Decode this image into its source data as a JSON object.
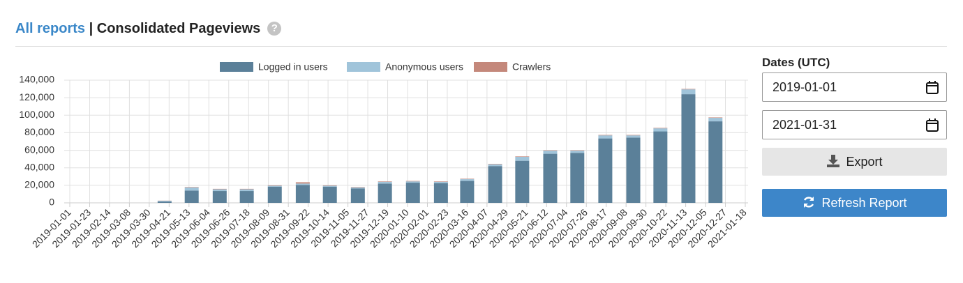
{
  "header": {
    "link": "All reports",
    "separator": "|",
    "title": "Consolidated Pageviews",
    "help": "?"
  },
  "sidebar": {
    "label": "Dates (UTC)",
    "start_date": "2019-01-01",
    "end_date": "2021-01-31",
    "export": "Export",
    "refresh": "Refresh Report"
  },
  "chart_data": {
    "type": "bar",
    "stacked": true,
    "grid": true,
    "legend": "top",
    "x": [
      "2019-04",
      "2019-05",
      "2019-06",
      "2019-07",
      "2019-08",
      "2019-09",
      "2019-10",
      "2019-11",
      "2019-12",
      "2020-01",
      "2020-02",
      "2020-03",
      "2020-04",
      "2020-05",
      "2020-06",
      "2020-07",
      "2020-08",
      "2020-09",
      "2020-10",
      "2020-11",
      "2020-12"
    ],
    "series": [
      {
        "name": "Logged in users",
        "color": "#5b8099",
        "values": [
          1500,
          14000,
          13500,
          13500,
          18500,
          20500,
          18500,
          16500,
          22000,
          23000,
          22500,
          25000,
          42000,
          48000,
          56000,
          57000,
          73500,
          74500,
          81500,
          124000,
          93000
        ]
      },
      {
        "name": "Anonymous users",
        "color": "#a0c4da",
        "values": [
          800,
          3500,
          2000,
          2000,
          1000,
          1500,
          1000,
          1000,
          2000,
          1500,
          1500,
          2000,
          2000,
          4500,
          3500,
          2500,
          3500,
          2500,
          3500,
          5500,
          4000
        ]
      },
      {
        "name": "Crawlers",
        "color": "#c4887b",
        "values": [
          200,
          500,
          500,
          500,
          500,
          1500,
          500,
          500,
          500,
          500,
          500,
          500,
          500,
          500,
          500,
          500,
          500,
          500,
          500,
          500,
          500
        ]
      }
    ],
    "xlim": [
      "2019-01-01",
      "2021-01-18"
    ],
    "xticks": [
      "2019-01-01",
      "2019-01-23",
      "2019-02-14",
      "2019-03-08",
      "2019-03-30",
      "2019-04-21",
      "2019-05-13",
      "2019-06-04",
      "2019-06-26",
      "2019-07-18",
      "2019-08-09",
      "2019-08-31",
      "2019-09-22",
      "2019-10-14",
      "2019-11-05",
      "2019-11-27",
      "2019-12-19",
      "2020-01-10",
      "2020-02-01",
      "2020-02-23",
      "2020-03-16",
      "2020-04-07",
      "2020-04-29",
      "2020-05-21",
      "2020-06-12",
      "2020-07-04",
      "2020-07-26",
      "2020-08-17",
      "2020-09-08",
      "2020-09-30",
      "2020-10-22",
      "2020-11-13",
      "2020-12-05",
      "2020-12-27",
      "2021-01-18"
    ],
    "ylim": [
      0,
      140000
    ],
    "yticks": [
      0,
      {
        "value": 20000,
        "label": "20,000"
      },
      {
        "value": 40000,
        "label": "40,000"
      },
      {
        "value": 60000,
        "label": "60,000"
      },
      {
        "value": 80000,
        "label": "80,000"
      },
      {
        "value": 100000,
        "label": "100,000"
      },
      {
        "value": 120000,
        "label": "120,000"
      },
      {
        "value": 140000,
        "label": "140,000"
      }
    ]
  }
}
